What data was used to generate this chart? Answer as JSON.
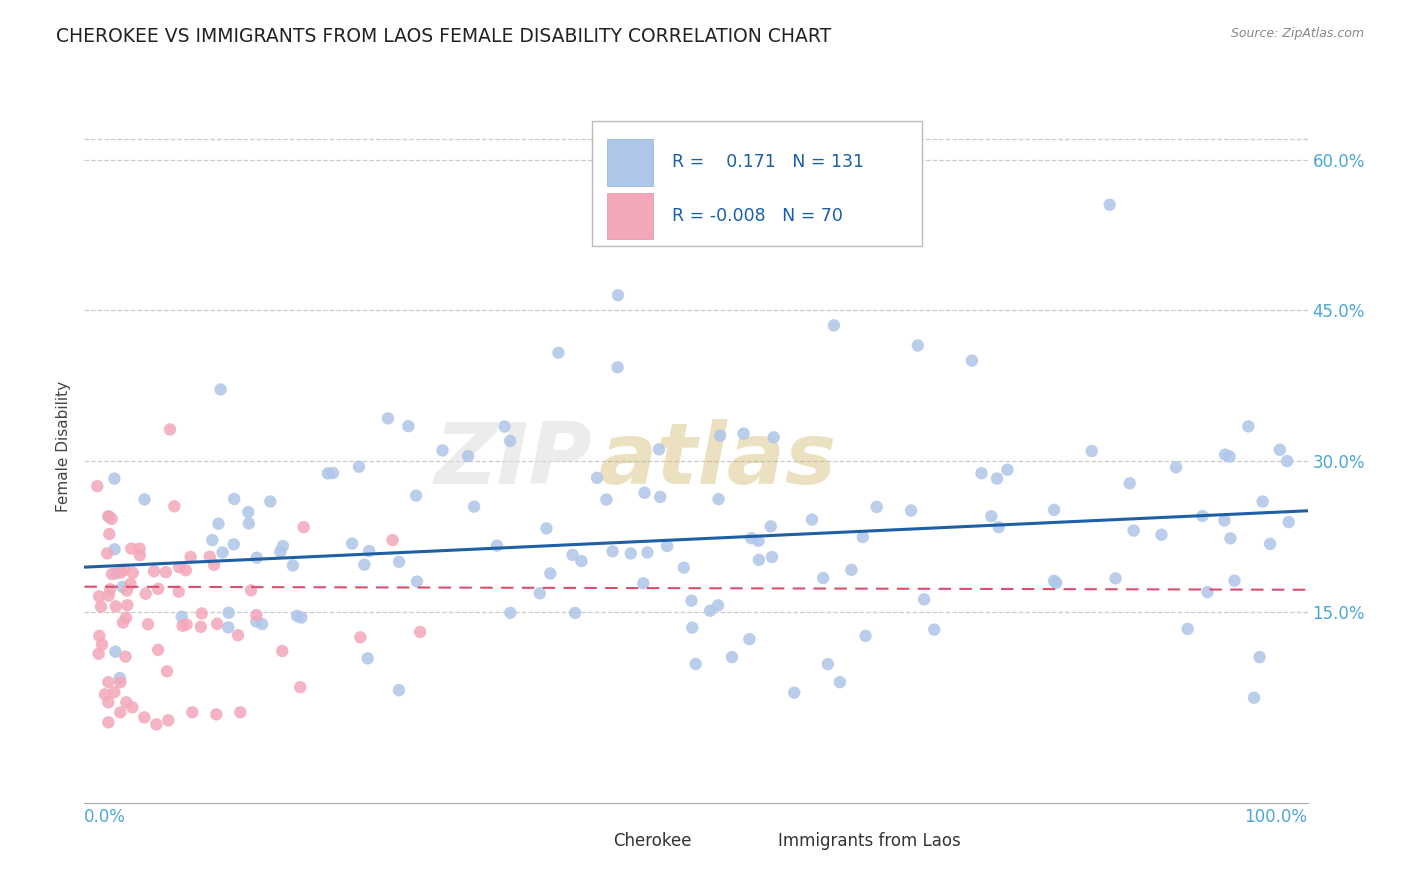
{
  "title": "CHEROKEE VS IMMIGRANTS FROM LAOS FEMALE DISABILITY CORRELATION CHART",
  "source": "Source: ZipAtlas.com",
  "ylabel": "Female Disability",
  "xlim": [
    -0.01,
    1.01
  ],
  "ylim": [
    -0.04,
    0.67
  ],
  "yticks": [
    0.15,
    0.3,
    0.45,
    0.6
  ],
  "ytick_labels": [
    "15.0%",
    "30.0%",
    "45.0%",
    "60.0%"
  ],
  "blue_color": "#aec6e8",
  "pink_color": "#f4a7b9",
  "line_blue": "#1f5fa6",
  "line_pink": "#d94f6e",
  "blue_slope": 0.055,
  "blue_intercept": 0.195,
  "pink_slope": -0.003,
  "pink_intercept": 0.175,
  "title_color": "#222222",
  "tick_color": "#4da6d9",
  "source_color": "#888888"
}
